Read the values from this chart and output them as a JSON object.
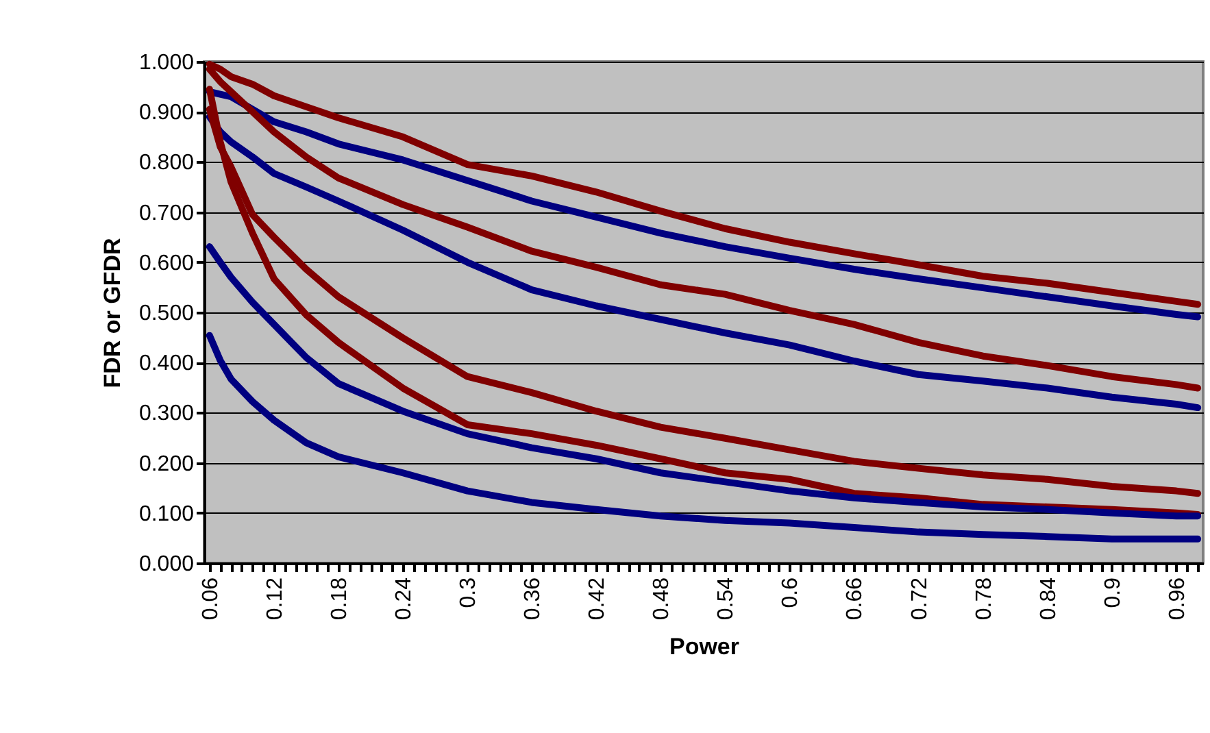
{
  "chart_data": {
    "type": "line",
    "xlabel": "Power",
    "ylabel": "FDR or GFDR",
    "x": [
      0.06,
      0.07,
      0.08,
      0.1,
      0.12,
      0.15,
      0.18,
      0.24,
      0.3,
      0.36,
      0.42,
      0.48,
      0.54,
      0.6,
      0.66,
      0.72,
      0.78,
      0.84,
      0.9,
      0.96,
      0.98
    ],
    "series": [
      {
        "color": "#800000",
        "values": [
          0.995,
          0.985,
          0.97,
          0.955,
          0.932,
          0.91,
          0.888,
          0.85,
          0.795,
          0.772,
          0.74,
          0.702,
          0.667,
          0.64,
          0.617,
          0.595,
          0.572,
          0.558,
          0.54,
          0.522,
          0.516
        ]
      },
      {
        "color": "#000080",
        "values": [
          0.94,
          0.935,
          0.93,
          0.905,
          0.88,
          0.86,
          0.836,
          0.804,
          0.763,
          0.722,
          0.69,
          0.658,
          0.631,
          0.608,
          0.586,
          0.567,
          0.549,
          0.531,
          0.513,
          0.496,
          0.491
        ]
      },
      {
        "color": "#800000",
        "values": [
          0.985,
          0.96,
          0.94,
          0.9,
          0.86,
          0.81,
          0.768,
          0.715,
          0.67,
          0.622,
          0.59,
          0.555,
          0.536,
          0.504,
          0.476,
          0.44,
          0.413,
          0.394,
          0.372,
          0.356,
          0.349
        ]
      },
      {
        "color": "#000080",
        "values": [
          0.89,
          0.86,
          0.84,
          0.81,
          0.777,
          0.75,
          0.722,
          0.664,
          0.6,
          0.545,
          0.513,
          0.486,
          0.459,
          0.435,
          0.403,
          0.376,
          0.363,
          0.349,
          0.331,
          0.317,
          0.31
        ]
      },
      {
        "color": "#800000",
        "values": [
          0.905,
          0.83,
          0.79,
          0.695,
          0.65,
          0.586,
          0.531,
          0.449,
          0.372,
          0.34,
          0.303,
          0.271,
          0.249,
          0.226,
          0.203,
          0.189,
          0.176,
          0.167,
          0.153,
          0.144,
          0.139
        ]
      },
      {
        "color": "#800000",
        "values": [
          0.945,
          0.84,
          0.76,
          0.658,
          0.567,
          0.495,
          0.44,
          0.349,
          0.276,
          0.258,
          0.235,
          0.208,
          0.18,
          0.167,
          0.139,
          0.13,
          0.117,
          0.112,
          0.107,
          0.1,
          0.097
        ]
      },
      {
        "color": "#000080",
        "values": [
          0.631,
          0.6,
          0.57,
          0.52,
          0.476,
          0.41,
          0.358,
          0.303,
          0.258,
          0.23,
          0.208,
          0.18,
          0.162,
          0.144,
          0.13,
          0.121,
          0.112,
          0.107,
          0.1,
          0.094,
          0.094
        ]
      },
      {
        "color": "#000080",
        "values": [
          0.454,
          0.404,
          0.367,
          0.322,
          0.285,
          0.24,
          0.212,
          0.18,
          0.144,
          0.121,
          0.107,
          0.094,
          0.085,
          0.08,
          0.071,
          0.062,
          0.057,
          0.053,
          0.048,
          0.048,
          0.048
        ]
      }
    ],
    "xlim": [
      0.055,
      0.985
    ],
    "xticks": [
      0.06,
      {
        "value": 0.07,
        "label": null
      },
      {
        "value": 0.08,
        "label": null
      },
      {
        "value": 0.09,
        "label": null
      },
      {
        "value": 0.1,
        "label": null
      },
      {
        "value": 0.11,
        "label": null
      },
      0.12,
      {
        "value": 0.13,
        "label": null
      },
      {
        "value": 0.14,
        "label": null
      },
      {
        "value": 0.15,
        "label": null
      },
      {
        "value": 0.16,
        "label": null
      },
      {
        "value": 0.17,
        "label": null
      },
      0.18,
      {
        "value": 0.19,
        "label": null
      },
      {
        "value": 0.2,
        "label": null
      },
      {
        "value": 0.21,
        "label": null
      },
      {
        "value": 0.22,
        "label": null
      },
      {
        "value": 0.23,
        "label": null
      },
      0.24,
      {
        "value": 0.25,
        "label": null
      },
      {
        "value": 0.26,
        "label": null
      },
      {
        "value": 0.27,
        "label": null
      },
      {
        "value": 0.28,
        "label": null
      },
      {
        "value": 0.29,
        "label": null
      },
      0.3,
      {
        "value": 0.31,
        "label": null
      },
      {
        "value": 0.32,
        "label": null
      },
      {
        "value": 0.33,
        "label": null
      },
      {
        "value": 0.34,
        "label": null
      },
      {
        "value": 0.35,
        "label": null
      },
      0.36,
      {
        "value": 0.37,
        "label": null
      },
      {
        "value": 0.38,
        "label": null
      },
      {
        "value": 0.39,
        "label": null
      },
      {
        "value": 0.4,
        "label": null
      },
      {
        "value": 0.41,
        "label": null
      },
      0.42,
      {
        "value": 0.43,
        "label": null
      },
      {
        "value": 0.44,
        "label": null
      },
      {
        "value": 0.45,
        "label": null
      },
      {
        "value": 0.46,
        "label": null
      },
      {
        "value": 0.47,
        "label": null
      },
      0.48,
      {
        "value": 0.49,
        "label": null
      },
      {
        "value": 0.5,
        "label": null
      },
      {
        "value": 0.51,
        "label": null
      },
      {
        "value": 0.52,
        "label": null
      },
      {
        "value": 0.53,
        "label": null
      },
      0.54,
      {
        "value": 0.55,
        "label": null
      },
      {
        "value": 0.56,
        "label": null
      },
      {
        "value": 0.57,
        "label": null
      },
      {
        "value": 0.58,
        "label": null
      },
      {
        "value": 0.59,
        "label": null
      },
      0.6,
      {
        "value": 0.61,
        "label": null
      },
      {
        "value": 0.62,
        "label": null
      },
      {
        "value": 0.63,
        "label": null
      },
      {
        "value": 0.64,
        "label": null
      },
      {
        "value": 0.65,
        "label": null
      },
      0.66,
      {
        "value": 0.67,
        "label": null
      },
      {
        "value": 0.68,
        "label": null
      },
      {
        "value": 0.69,
        "label": null
      },
      {
        "value": 0.7,
        "label": null
      },
      {
        "value": 0.71,
        "label": null
      },
      0.72,
      {
        "value": 0.73,
        "label": null
      },
      {
        "value": 0.74,
        "label": null
      },
      {
        "value": 0.75,
        "label": null
      },
      {
        "value": 0.76,
        "label": null
      },
      {
        "value": 0.77,
        "label": null
      },
      0.78,
      {
        "value": 0.79,
        "label": null
      },
      {
        "value": 0.8,
        "label": null
      },
      {
        "value": 0.81,
        "label": null
      },
      {
        "value": 0.82,
        "label": null
      },
      {
        "value": 0.83,
        "label": null
      },
      0.84,
      {
        "value": 0.85,
        "label": null
      },
      {
        "value": 0.86,
        "label": null
      },
      {
        "value": 0.87,
        "label": null
      },
      {
        "value": 0.88,
        "label": null
      },
      {
        "value": 0.89,
        "label": null
      },
      0.9,
      {
        "value": 0.91,
        "label": null
      },
      {
        "value": 0.92,
        "label": null
      },
      {
        "value": 0.93,
        "label": null
      },
      {
        "value": 0.94,
        "label": null
      },
      {
        "value": 0.95,
        "label": null
      },
      0.96,
      {
        "value": 0.97,
        "label": null
      },
      {
        "value": 0.98,
        "label": null
      }
    ],
    "ylim": [
      0,
      1
    ],
    "yticks": [
      {
        "value": 0,
        "label": "0.000"
      },
      {
        "value": 0.1,
        "label": "0.100"
      },
      {
        "value": 0.2,
        "label": "0.200"
      },
      {
        "value": 0.3,
        "label": "0.300"
      },
      {
        "value": 0.4,
        "label": "0.400"
      },
      {
        "value": 0.5,
        "label": "0.500"
      },
      {
        "value": 0.6,
        "label": "0.600"
      },
      {
        "value": 0.7,
        "label": "0.700"
      },
      {
        "value": 0.8,
        "label": "0.800"
      },
      {
        "value": 0.9,
        "label": "0.900"
      },
      {
        "value": 1,
        "label": "1.000"
      }
    ],
    "grid": "y",
    "legend": false,
    "marker": "none",
    "line_style": "solid"
  }
}
